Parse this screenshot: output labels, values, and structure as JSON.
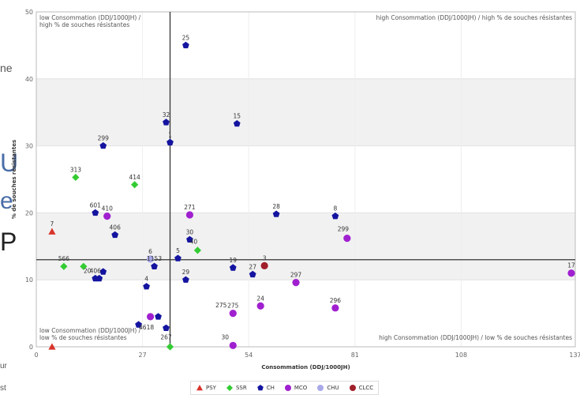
{
  "page": {
    "edge_fragments": [
      "ne",
      "U",
      "e",
      "P",
      "ur",
      "st"
    ]
  },
  "chart_data": {
    "type": "scatter",
    "xlabel": "Consommation (DDJ/1000JH)",
    "ylabel": "% de souches résistantes",
    "xlim": [
      0,
      137
    ],
    "ylim": [
      0,
      50
    ],
    "x_ticks": [
      0,
      27,
      54,
      81,
      108,
      137
    ],
    "y_ticks": [
      0,
      10,
      20,
      30,
      40,
      50
    ],
    "reference_lines": {
      "x": 34,
      "y": 13
    },
    "quadrant_labels": {
      "top_left": [
        "low Consommation (DDJ/1000JH) /",
        "high % de souches résistantes"
      ],
      "top_right": "high Consommation (DDJ/1000JH) / high % de souches résistantes",
      "bottom_left": [
        "low Consommation (DDJ/1000JH) /",
        "low % de souches résistantes"
      ],
      "bottom_right": "high Consommation (DDJ/1000JH) / low % de souches résistantes"
    },
    "grid": "horizontal bands",
    "legend_position": "bottom",
    "series": [
      {
        "name": "PSY",
        "color": "#d9342b",
        "marker": "triangle",
        "points": [
          {
            "label": "7",
            "x": 4,
            "y": 17.2
          },
          {
            "label": "",
            "x": 4,
            "y": 0
          }
        ]
      },
      {
        "name": "SSR",
        "color": "#33cc33",
        "marker": "diamond",
        "points": [
          {
            "label": "313",
            "x": 10,
            "y": 25.3
          },
          {
            "label": "414",
            "x": 25,
            "y": 24.2
          },
          {
            "label": "566",
            "x": 7,
            "y": 12
          },
          {
            "label": "",
            "x": 12,
            "y": 12
          },
          {
            "label": "",
            "x": 41,
            "y": 14.4
          },
          {
            "label": "",
            "x": 34,
            "y": 0
          }
        ]
      },
      {
        "name": "CH",
        "color": "#1414a0",
        "marker": "pentagon",
        "points": [
          {
            "label": "25",
            "x": 38,
            "y": 45
          },
          {
            "label": "32",
            "x": 33,
            "y": 33.5
          },
          {
            "label": "15",
            "x": 51,
            "y": 33.3
          },
          {
            "label": "299",
            "x": 17,
            "y": 30
          },
          {
            "label": "1",
            "x": 34,
            "y": 30.5
          },
          {
            "label": "601",
            "x": 15,
            "y": 20
          },
          {
            "label": "28",
            "x": 61,
            "y": 19.8
          },
          {
            "label": "8",
            "x": 76,
            "y": 19.5
          },
          {
            "label": "406",
            "x": 20,
            "y": 16.7
          },
          {
            "label": "30",
            "x": 39,
            "y": 16
          },
          {
            "label": "1153",
            "x": 30,
            "y": 12
          },
          {
            "label": "5",
            "x": 36,
            "y": 13.2
          },
          {
            "label": "19",
            "x": 50,
            "y": 11.8
          },
          {
            "label": "27",
            "x": 55,
            "y": 10.8
          },
          {
            "label": "",
            "x": 17,
            "y": 11.2
          },
          {
            "label": "",
            "x": 16,
            "y": 10.2
          },
          {
            "label": "406",
            "x": 15,
            "y": 10.2
          },
          {
            "label": "4",
            "x": 28,
            "y": 9
          },
          {
            "label": "29",
            "x": 38,
            "y": 10
          },
          {
            "label": "",
            "x": 26,
            "y": 3.3
          },
          {
            "label": "",
            "x": 31,
            "y": 4.5
          },
          {
            "label": "",
            "x": 33,
            "y": 2.8
          }
        ]
      },
      {
        "name": "MCO",
        "color": "#a020d0",
        "marker": "circle",
        "points": [
          {
            "label": "410",
            "x": 18,
            "y": 19.5
          },
          {
            "label": "271",
            "x": 39,
            "y": 19.7
          },
          {
            "label": "",
            "x": 79,
            "y": 16.2
          },
          {
            "label": "297",
            "x": 66,
            "y": 9.6
          },
          {
            "label": "17",
            "x": 136,
            "y": 11
          },
          {
            "label": "24",
            "x": 57,
            "y": 6.1
          },
          {
            "label": "275",
            "x": 50,
            "y": 5
          },
          {
            "label": "296",
            "x": 76,
            "y": 5.8
          },
          {
            "label": "",
            "x": 29,
            "y": 4.5
          },
          {
            "label": "",
            "x": 50,
            "y": 0.2
          }
        ]
      },
      {
        "name": "CHU",
        "color": "#a9a9e8",
        "marker": "circle",
        "points": [
          {
            "label": "6",
            "x": 29,
            "y": 13.1
          }
        ]
      },
      {
        "name": "CLCC",
        "color": "#a0202a",
        "marker": "circle",
        "points": [
          {
            "label": "3",
            "x": 58,
            "y": 12.1
          }
        ]
      }
    ],
    "extra_labels": [
      {
        "text": "299",
        "x": 78,
        "y": 17.3
      },
      {
        "text": "20",
        "x": 13,
        "y": 11
      },
      {
        "text": "40",
        "x": 40,
        "y": 15.4
      },
      {
        "text": "275",
        "x": 47,
        "y": 5.9
      },
      {
        "text": "30",
        "x": 48,
        "y": 1.1
      },
      {
        "text": "4618",
        "x": 28,
        "y": 2.6
      },
      {
        "text": "267",
        "x": 33,
        "y": 1.1
      }
    ]
  }
}
